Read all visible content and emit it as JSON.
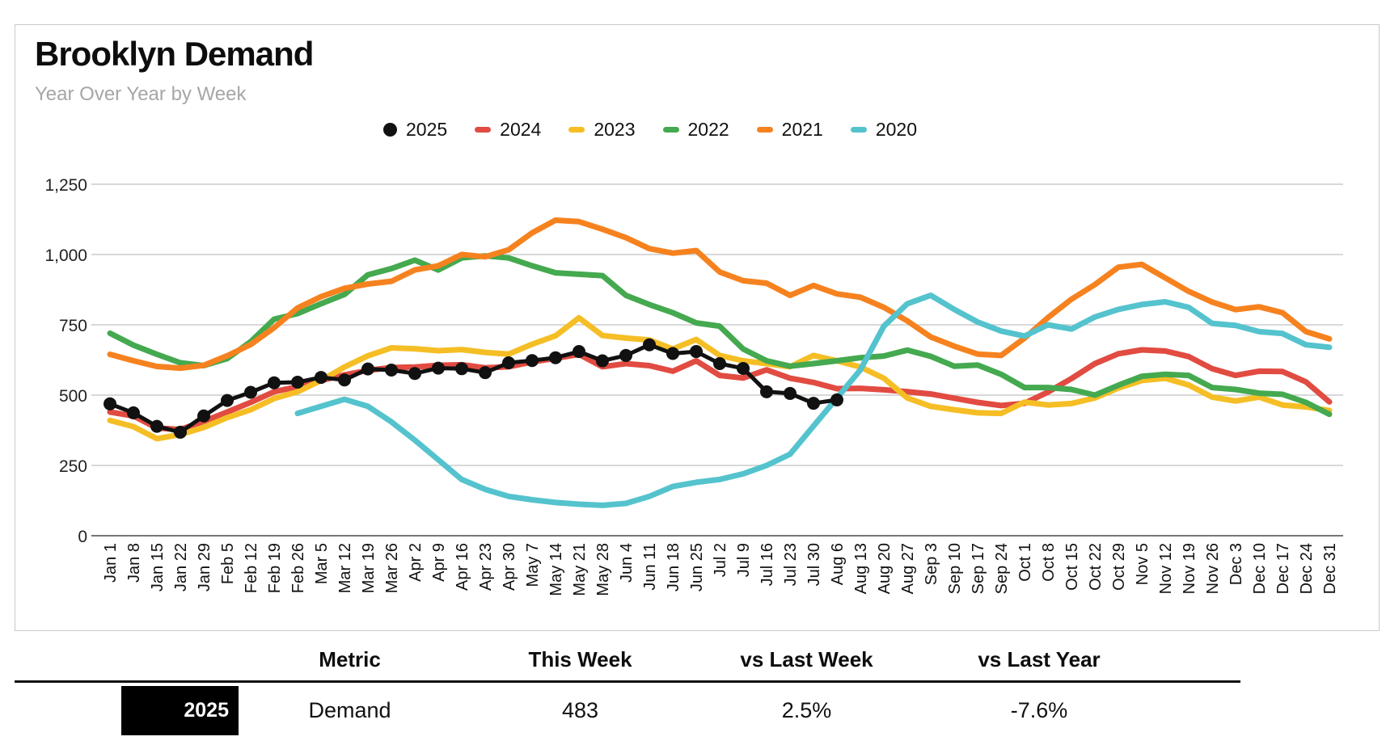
{
  "header": {
    "title": "Brooklyn Demand",
    "subtitle": "Year Over Year by Week"
  },
  "chart_data": {
    "type": "line",
    "title": "Brooklyn Demand",
    "subtitle": "Year Over Year by Week",
    "xlabel": "",
    "ylabel": "",
    "ylim": [
      0,
      1250
    ],
    "ytick_values": [
      0,
      250,
      500,
      750,
      1000,
      1250
    ],
    "ytick_labels": [
      "0",
      "250",
      "500",
      "750",
      "1,000",
      "1,250"
    ],
    "grid": true,
    "legend_position": "top-center",
    "grid_color": "#cccccc",
    "axis_color": "#757575",
    "x_labels": [
      "Jan 1",
      "Jan 8",
      "Jan 15",
      "Jan 22",
      "Jan 29",
      "Feb 5",
      "Feb 12",
      "Feb 19",
      "Feb 26",
      "Mar 5",
      "Mar 12",
      "Mar 19",
      "Mar 26",
      "Apr 2",
      "Apr 9",
      "Apr 16",
      "Apr 23",
      "Apr 30",
      "May 7",
      "May 14",
      "May 21",
      "May 28",
      "Jun 4",
      "Jun 11",
      "Jun 18",
      "Jun 25",
      "Jul 2",
      "Jul 9",
      "Jul 16",
      "Jul 23",
      "Jul 30",
      "Aug 6",
      "Aug 13",
      "Aug 20",
      "Aug 27",
      "Sep 3",
      "Sep 10",
      "Sep 17",
      "Sep 24",
      "Oct 1",
      "Oct 8",
      "Oct 15",
      "Oct 22",
      "Oct 29",
      "Nov 5",
      "Nov 12",
      "Nov 19",
      "Nov 26",
      "Dec 3",
      "Dec 10",
      "Dec 17",
      "Dec 24",
      "Dec 31"
    ],
    "series": [
      {
        "name": "2025",
        "color": "#111111",
        "marker": "circle",
        "values": [
          469,
          437,
          389,
          368,
          426,
          481,
          510,
          544,
          546,
          563,
          554,
          593,
          589,
          577,
          596,
          594,
          580,
          615,
          623,
          633,
          655,
          622,
          641,
          679,
          648,
          655,
          612,
          595,
          512,
          506,
          471,
          483,
          null,
          null,
          null,
          null,
          null,
          null,
          null,
          null,
          null,
          null,
          null,
          null,
          null,
          null,
          null,
          null,
          null,
          null,
          null,
          null,
          null
        ]
      },
      {
        "name": "2024",
        "color": "#E14B41",
        "marker": "dash",
        "values": [
          440,
          426,
          383,
          378,
          407,
          440,
          474,
          512,
          530,
          552,
          572,
          588,
          598,
          600,
          606,
          608,
          597,
          601,
          618,
          631,
          645,
          601,
          612,
          605,
          585,
          622,
          570,
          561,
          590,
          560,
          545,
          523,
          524,
          519,
          512,
          504,
          489,
          474,
          463,
          471,
          511,
          559,
          612,
          647,
          661,
          657,
          637,
          594,
          570,
          585,
          584,
          547,
          476
        ]
      },
      {
        "name": "2023",
        "color": "#F5BE25",
        "marker": "dash",
        "values": [
          410,
          388,
          345,
          360,
          385,
          420,
          448,
          488,
          512,
          552,
          600,
          640,
          668,
          665,
          658,
          662,
          652,
          646,
          681,
          711,
          775,
          712,
          703,
          696,
          664,
          698,
          641,
          622,
          612,
          601,
          641,
          622,
          600,
          560,
          490,
          460,
          448,
          437,
          435,
          475,
          465,
          470,
          490,
          525,
          552,
          560,
          536,
          493,
          479,
          493,
          465,
          458,
          445
        ]
      },
      {
        "name": "2022",
        "color": "#44A94F",
        "marker": "dash",
        "values": [
          720,
          678,
          645,
          615,
          605,
          630,
          690,
          770,
          790,
          825,
          858,
          928,
          950,
          980,
          945,
          988,
          995,
          988,
          960,
          935,
          930,
          925,
          855,
          822,
          793,
          757,
          745,
          664,
          622,
          603,
          612,
          622,
          633,
          639,
          660,
          638,
          603,
          607,
          574,
          527,
          527,
          520,
          500,
          535,
          567,
          574,
          570,
          527,
          520,
          507,
          503,
          474,
          432
        ]
      },
      {
        "name": "2021",
        "color": "#F6821F",
        "marker": "dash",
        "values": [
          645,
          622,
          602,
          596,
          606,
          640,
          680,
          740,
          810,
          850,
          880,
          895,
          905,
          945,
          960,
          1000,
          992,
          1017,
          1077,
          1122,
          1117,
          1090,
          1060,
          1021,
          1005,
          1014,
          938,
          907,
          898,
          855,
          890,
          860,
          848,
          812,
          764,
          707,
          674,
          646,
          641,
          703,
          776,
          841,
          893,
          955,
          965,
          917,
          869,
          831,
          804,
          814,
          793,
          726,
          700
        ]
      },
      {
        "name": "2020",
        "color": "#54C3CD",
        "marker": "dash",
        "values": [
          null,
          null,
          null,
          null,
          null,
          null,
          null,
          null,
          435,
          460,
          485,
          460,
          405,
          340,
          270,
          200,
          165,
          140,
          128,
          118,
          112,
          108,
          115,
          140,
          175,
          190,
          200,
          220,
          250,
          290,
          390,
          490,
          590,
          745,
          825,
          855,
          805,
          760,
          728,
          710,
          750,
          735,
          778,
          805,
          822,
          832,
          812,
          755,
          748,
          726,
          719,
          679,
          670
        ]
      }
    ]
  },
  "summary_table": {
    "headers": [
      "Metric",
      "This Week",
      "vs Last Week",
      "vs Last Year"
    ],
    "row": {
      "badge": "2025",
      "metric": "Demand",
      "this_week": "483",
      "vs_last_week": "2.5%",
      "vs_last_year": "-7.6%"
    }
  }
}
